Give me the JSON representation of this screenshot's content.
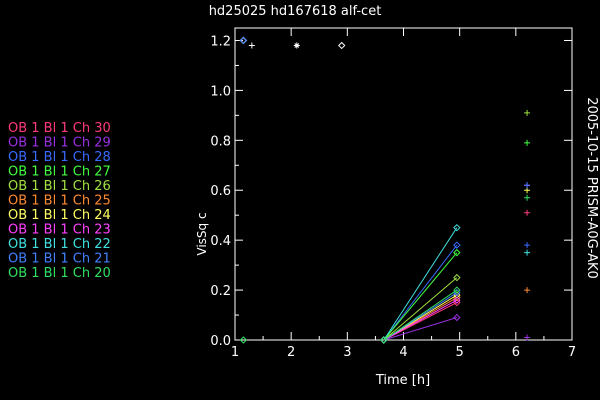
{
  "chart_data": {
    "type": "line",
    "title": "hd25025   hd167618  alf-cet",
    "side_label": "2005-10-15 PRISM-A0G-AK0",
    "xlabel": "Time [h]",
    "ylabel": "VisSq c",
    "xlim": [
      1,
      7
    ],
    "ylim": [
      0,
      1.25
    ],
    "xticks": [
      "1",
      "2",
      "3",
      "4",
      "5",
      "6",
      "7"
    ],
    "yticks": [
      "0.0",
      "0.2",
      "0.4",
      "0.6",
      "0.8",
      "1.0",
      "1.2"
    ],
    "grid": false,
    "legend_position": "left",
    "white_points": [
      {
        "x": 1.3,
        "y": 1.18,
        "symbol": "+"
      },
      {
        "x": 2.1,
        "y": 1.18,
        "symbol": "*"
      },
      {
        "x": 2.9,
        "y": 1.18,
        "symbol": "diamond"
      }
    ],
    "series": [
      {
        "name": "OB 1 Bl 1 Ch 30",
        "color": "#ff3a7a",
        "x": [
          1.15,
          3.65,
          4.95,
          6.2
        ],
        "y": [
          1.2,
          0.0,
          0.15,
          0.51
        ]
      },
      {
        "name": "OB 1 Bl 1 Ch 29",
        "color": "#9a30e0",
        "x": [
          1.15,
          3.65,
          4.95,
          6.2
        ],
        "y": [
          1.2,
          0.0,
          0.09,
          0.01
        ]
      },
      {
        "name": "OB 1 Bl 1 Ch 28",
        "color": "#3a6aff",
        "x": [
          1.15,
          3.65,
          4.95,
          6.2
        ],
        "y": [
          1.2,
          0.0,
          0.38,
          0.38
        ]
      },
      {
        "name": "OB 1 Bl 1 Ch 27",
        "color": "#40ff40",
        "x": [
          1.15,
          3.65,
          4.95,
          6.2
        ],
        "y": [
          1.2,
          0.0,
          0.35,
          0.79
        ]
      },
      {
        "name": "OB 1 Bl 1 Ch 26",
        "color": "#a0e040",
        "x": [
          1.15,
          3.65,
          4.95,
          6.2
        ],
        "y": [
          1.2,
          0.0,
          0.25,
          0.91
        ]
      },
      {
        "name": "OB 1 Bl 1 Ch 25",
        "color": "#ff8a30",
        "x": [
          1.15,
          3.65,
          4.95,
          6.2
        ],
        "y": [
          1.2,
          0.0,
          0.17,
          0.2
        ]
      },
      {
        "name": "OB 1 Bl 1 Ch 24",
        "color": "#ffff60",
        "x": [
          1.15,
          3.65,
          4.95,
          6.2
        ],
        "y": [
          1.2,
          0.0,
          0.18,
          0.6
        ]
      },
      {
        "name": "OB 1 Bl 1 Ch 23",
        "color": "#ff40ff",
        "x": [
          1.15,
          3.65,
          4.95,
          6.2
        ],
        "y": [
          1.2,
          0.0,
          0.16,
          0.62
        ]
      },
      {
        "name": "OB 1 Bl 1 Ch 22",
        "color": "#40e0e0",
        "x": [
          1.15,
          3.65,
          4.95,
          6.2
        ],
        "y": [
          1.2,
          0.0,
          0.45,
          0.35
        ]
      },
      {
        "name": "OB 1 Bl 1 Ch 21",
        "color": "#4080ff",
        "x": [
          1.15,
          3.65,
          4.95,
          6.2
        ],
        "y": [
          1.2,
          0.0,
          0.19,
          0.62
        ]
      },
      {
        "name": "OB 1 Bl 1 Ch 20",
        "color": "#30e060",
        "x": [
          1.15,
          3.65,
          4.95,
          6.2
        ],
        "y": [
          0.0,
          0.0,
          0.2,
          0.57
        ]
      }
    ]
  }
}
